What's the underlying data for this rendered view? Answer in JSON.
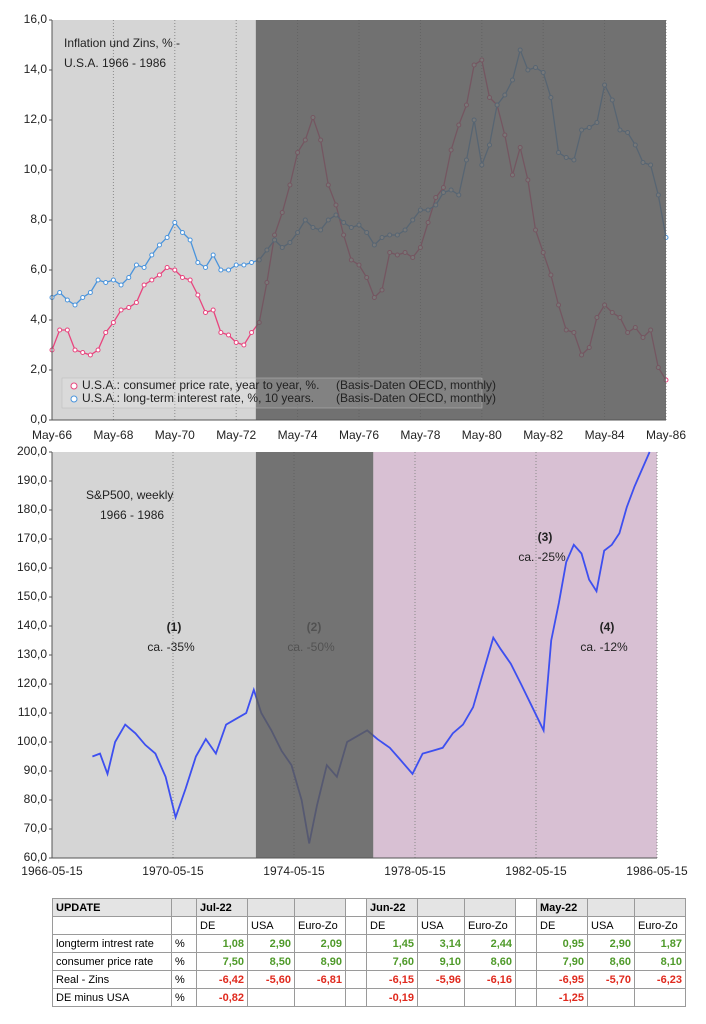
{
  "chart_data": [
    {
      "type": "line",
      "title": [
        "Inflation und Zins, %  -",
        "U.S.A.   1966 - 1986"
      ],
      "categories": [
        "May-66",
        null,
        null,
        null,
        null,
        null,
        null,
        null,
        "May-68",
        null,
        null,
        null,
        null,
        null,
        null,
        null,
        "May-70",
        null,
        null,
        null,
        null,
        null,
        null,
        null,
        "May-72",
        null,
        null,
        null,
        null,
        null,
        null,
        null,
        "May-74",
        null,
        null,
        null,
        null,
        null,
        null,
        null,
        "May-76",
        null,
        null,
        null,
        null,
        null,
        null,
        null,
        "May-78",
        null,
        null,
        null,
        null,
        null,
        null,
        null,
        "May-80",
        null,
        null,
        null,
        null,
        null,
        null,
        null,
        "May-82",
        null,
        null,
        null,
        null,
        null,
        null,
        null,
        "May-84",
        null,
        null,
        null,
        null,
        null,
        null,
        null,
        "May-86"
      ],
      "series": [
        {
          "name": "U.S.A.: consumer price rate, year to year, %.",
          "color": "#e8457e",
          "values": [
            2.8,
            3.6,
            3.6,
            2.8,
            2.7,
            2.6,
            2.8,
            3.5,
            3.9,
            4.4,
            4.5,
            4.7,
            5.4,
            5.6,
            5.8,
            6.1,
            6.0,
            5.7,
            5.6,
            5.0,
            4.3,
            4.4,
            3.5,
            3.4,
            3.1,
            3.0,
            3.5,
            3.9,
            5.5,
            7.4,
            8.3,
            9.4,
            10.7,
            11.2,
            12.1,
            11.2,
            9.4,
            8.6,
            7.4,
            6.4,
            6.2,
            5.7,
            4.9,
            5.2,
            6.7,
            6.6,
            6.7,
            6.5,
            6.9,
            7.9,
            8.9,
            9.3,
            10.8,
            11.8,
            12.6,
            14.2,
            14.4,
            12.9,
            12.6,
            11.4,
            9.8,
            10.9,
            9.6,
            7.6,
            6.7,
            5.8,
            4.6,
            3.6,
            3.5,
            2.6,
            2.9,
            4.1,
            4.6,
            4.3,
            4.1,
            3.5,
            3.7,
            3.3,
            3.6,
            2.1,
            1.6
          ]
        },
        {
          "name": "U.S.A.: long-term interest rate, %, 10 years.",
          "color": "#4a94dc",
          "values": [
            4.9,
            5.1,
            4.8,
            4.6,
            4.9,
            5.1,
            5.6,
            5.5,
            5.6,
            5.4,
            5.7,
            6.2,
            6.1,
            6.6,
            7.0,
            7.3,
            7.9,
            7.5,
            7.2,
            6.3,
            6.1,
            6.6,
            6.0,
            6.0,
            6.2,
            6.2,
            6.3,
            6.4,
            6.8,
            7.2,
            6.9,
            7.1,
            7.5,
            8.0,
            7.7,
            7.6,
            8.0,
            8.2,
            7.9,
            7.7,
            7.8,
            7.5,
            7.0,
            7.3,
            7.4,
            7.4,
            7.6,
            8.0,
            8.4,
            8.4,
            8.6,
            9.1,
            9.2,
            9.0,
            10.4,
            12.0,
            10.2,
            11.0,
            12.6,
            13.0,
            13.6,
            14.8,
            14.0,
            14.1,
            13.9,
            12.9,
            10.7,
            10.5,
            10.4,
            11.6,
            11.7,
            11.9,
            13.4,
            12.8,
            11.6,
            11.5,
            11.0,
            10.3,
            10.2,
            9.0,
            7.3
          ]
        }
      ],
      "source_note": "(Basis-Daten OECD, monthly)",
      "ylim": [
        0,
        16
      ],
      "yticks": [
        {
          "value": 0,
          "label": "0,0"
        },
        {
          "value": 2,
          "label": "2,0"
        },
        {
          "value": 4,
          "label": "4,0"
        },
        {
          "value": 6,
          "label": "6,0"
        },
        {
          "value": 8,
          "label": "8,0"
        },
        {
          "value": 10,
          "label": "10,0"
        },
        {
          "value": 12,
          "label": "12,0"
        },
        {
          "value": 14,
          "label": "14,0"
        },
        {
          "value": 16,
          "label": "16,0"
        }
      ],
      "vgrid": true,
      "markers": true
    },
    {
      "type": "line",
      "title": [
        "S&P500, weekly",
        "1966 - 1986"
      ],
      "x": [
        "1967-09-15",
        "1967-12-15",
        "1968-03-15",
        "1968-06-15",
        "1968-10-15",
        "1969-02-15",
        "1969-06-15",
        "1969-10-15",
        "1970-02-15",
        "1970-06-15",
        "1970-10-15",
        "1971-02-15",
        "1971-06-15",
        "1971-10-15",
        "1972-02-15",
        "1972-06-15",
        "1972-10-15",
        "1973-01-15",
        "1973-04-15",
        "1973-08-15",
        "1973-12-15",
        "1974-04-15",
        "1974-08-15",
        "1974-11-15",
        "1975-02-15",
        "1975-06-15",
        "1975-10-15",
        "1976-02-15",
        "1976-06-15",
        "1976-10-15",
        "1977-02-15",
        "1977-07-15",
        "1977-11-15",
        "1978-04-15",
        "1978-08-15",
        "1978-12-15",
        "1979-04-15",
        "1979-08-15",
        "1979-12-15",
        "1980-04-15",
        "1980-08-15",
        "1980-12-15",
        "1981-03-15",
        "1981-07-15",
        "1981-11-15",
        "1982-03-15",
        "1982-08-15",
        "1982-11-15",
        "1983-02-15",
        "1983-05-15",
        "1983-08-15",
        "1983-11-15",
        "1984-02-15",
        "1984-05-15",
        "1984-08-15",
        "1984-11-15",
        "1985-02-15",
        "1985-05-15",
        "1985-08-15",
        "1985-11-15",
        "1986-02-15"
      ],
      "series": [
        {
          "color": "#3d4ff0",
          "values": [
            95,
            96,
            89,
            100,
            106,
            103,
            99,
            96,
            88,
            74,
            84,
            95,
            101,
            96,
            106,
            108,
            110,
            118,
            110,
            104,
            97,
            92,
            80,
            65,
            78,
            92,
            88,
            100,
            102,
            104,
            101,
            98,
            94,
            89,
            96,
            97,
            98,
            103,
            106,
            112,
            124,
            136,
            132,
            127,
            120,
            113,
            104,
            135,
            148,
            162,
            168,
            165,
            156,
            152,
            166,
            168,
            172,
            181,
            188,
            194,
            200
          ]
        }
      ],
      "xlim": [
        "1966-05-15",
        "1986-05-15"
      ],
      "xticks": [
        "1966-05-15",
        "1970-05-15",
        "1974-05-15",
        "1978-05-15",
        "1982-05-15",
        "1986-05-15"
      ],
      "ylim": [
        60,
        200
      ],
      "yticks": [
        {
          "value": 60,
          "label": "60,0"
        },
        {
          "value": 70,
          "label": "70,0"
        },
        {
          "value": 80,
          "label": "80,0"
        },
        {
          "value": 90,
          "label": "90,0"
        },
        {
          "value": 100,
          "label": "100,0"
        },
        {
          "value": 110,
          "label": "110,0"
        },
        {
          "value": 120,
          "label": "120,0"
        },
        {
          "value": 130,
          "label": "130,0"
        },
        {
          "value": 140,
          "label": "140,0"
        },
        {
          "value": 150,
          "label": "150,0"
        },
        {
          "value": 160,
          "label": "160,0"
        },
        {
          "value": 170,
          "label": "170,0"
        },
        {
          "value": 180,
          "label": "180,0"
        },
        {
          "value": 190,
          "label": "190,0"
        },
        {
          "value": 200,
          "label": "200,0"
        }
      ],
      "annotations": [
        {
          "label": "(1)",
          "text": "ca. -35%"
        },
        {
          "label": "(2)",
          "text": "ca. -50%"
        },
        {
          "label": "(3)",
          "text": "ca. -25%"
        },
        {
          "label": "(4)",
          "text": "ca. -12%"
        }
      ],
      "annotation_color": "#3d50f0",
      "vgrid": true
    }
  ],
  "table": {
    "title": "UPDATE",
    "groups": [
      "Jul-22",
      "Jun-22",
      "May-22"
    ],
    "columns": [
      "DE",
      "USA",
      "Euro-Zo"
    ],
    "rows": [
      {
        "label": "longterm intrest rate",
        "unit": "%",
        "color": "#4f9a2a",
        "values": [
          "1,08",
          "2,90",
          "2,09",
          "1,45",
          "3,14",
          "2,44",
          "0,95",
          "2,90",
          "1,87"
        ]
      },
      {
        "label": "consumer price rate",
        "unit": "%",
        "color": "#4f9a2a",
        "values": [
          "7,50",
          "8,50",
          "8,90",
          "7,60",
          "9,10",
          "8,60",
          "7,90",
          "8,60",
          "8,10"
        ]
      },
      {
        "label": "Real - Zins",
        "unit": "%",
        "color": "#e02a1e",
        "values": [
          "-6,42",
          "-5,60",
          "-6,81",
          "-6,15",
          "-5,96",
          "-6,16",
          "-6,95",
          "-5,70",
          "-6,23"
        ]
      },
      {
        "label": "DE minus  USA",
        "unit": "%",
        "color": "#e02a1e",
        "values": [
          "-0,82",
          null,
          null,
          "-0,19",
          null,
          null,
          "-1,25",
          null,
          null
        ]
      }
    ]
  }
}
